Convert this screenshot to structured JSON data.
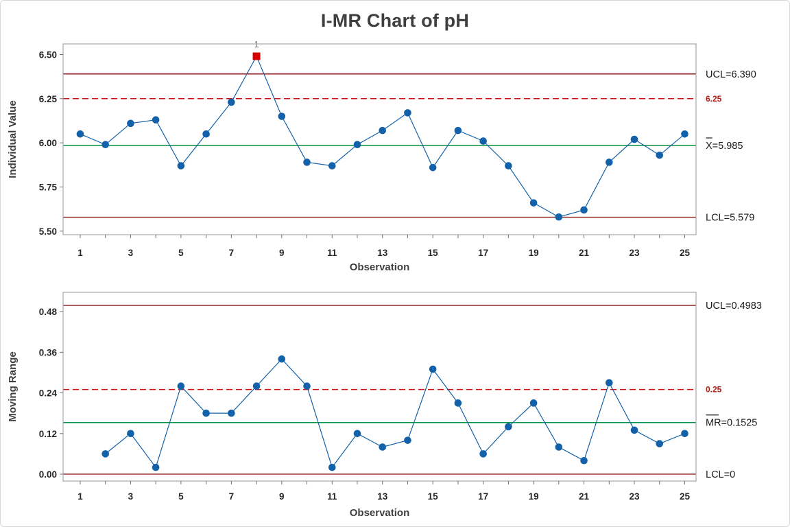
{
  "title": "I-MR Chart of pH",
  "colors": {
    "series_blue": "#1361A9",
    "center_green": "#009041",
    "limit_maroon": "#8E1B1B",
    "spec_red": "#C81414",
    "spec_text_red": "#B02018",
    "ooc_red": "#D60000",
    "flag_gray": "#737373",
    "border_gray": "#A6A6A6",
    "tick_gray": "#737373"
  },
  "chart_data": [
    {
      "type": "line",
      "name": "individuals",
      "ylabel": "Individual Value",
      "xlabel": "Observation",
      "x": [
        1,
        2,
        3,
        4,
        5,
        6,
        7,
        8,
        9,
        10,
        11,
        12,
        13,
        14,
        15,
        16,
        17,
        18,
        19,
        20,
        21,
        22,
        23,
        24,
        25
      ],
      "values": [
        6.05,
        5.99,
        6.11,
        6.13,
        5.87,
        6.05,
        6.23,
        6.49,
        6.15,
        5.89,
        5.87,
        5.99,
        6.07,
        6.17,
        5.86,
        6.07,
        6.01,
        5.87,
        5.66,
        5.58,
        5.62,
        5.89,
        6.02,
        5.93,
        6.05
      ],
      "ylim": [
        5.48,
        6.56
      ],
      "xlim": [
        0.32,
        25.45
      ],
      "yticks": [
        5.5,
        5.75,
        6.0,
        6.25,
        6.5
      ],
      "ytick_labels": [
        "5.50",
        "5.75",
        "6.00",
        "6.25",
        "6.50"
      ],
      "xlabel_ticks": [
        1,
        3,
        5,
        7,
        9,
        11,
        13,
        15,
        17,
        19,
        21,
        23,
        25
      ],
      "center_line": {
        "value": 5.985,
        "label": "X=5.985",
        "overbar": "X"
      },
      "ucl": {
        "value": 6.39,
        "label": "UCL=6.390"
      },
      "lcl": {
        "value": 5.579,
        "label": "LCL=5.579"
      },
      "spec_line": {
        "value": 6.25,
        "label": "6.25"
      },
      "out_of_control": [
        {
          "index": 8,
          "label": "1"
        }
      ],
      "legend": "none",
      "grid": "off"
    },
    {
      "type": "line",
      "name": "moving-range",
      "ylabel": "Moving Range",
      "xlabel": "Observation",
      "x": [
        1,
        2,
        3,
        4,
        5,
        6,
        7,
        8,
        9,
        10,
        11,
        12,
        13,
        14,
        15,
        16,
        17,
        18,
        19,
        20,
        21,
        22,
        23,
        24,
        25
      ],
      "values": [
        null,
        0.06,
        0.12,
        0.02,
        0.26,
        0.18,
        0.18,
        0.26,
        0.34,
        0.26,
        0.02,
        0.12,
        0.08,
        0.1,
        0.31,
        0.21,
        0.06,
        0.14,
        0.21,
        0.08,
        0.04,
        0.27,
        0.13,
        0.09,
        0.12
      ],
      "ylim": [
        -0.0203,
        0.537
      ],
      "xlim": [
        0.32,
        25.45
      ],
      "yticks": [
        0.0,
        0.12,
        0.24,
        0.36,
        0.48
      ],
      "ytick_labels": [
        "0.00",
        "0.12",
        "0.24",
        "0.36",
        "0.48"
      ],
      "xlabel_ticks": [
        1,
        3,
        5,
        7,
        9,
        11,
        13,
        15,
        17,
        19,
        21,
        23,
        25
      ],
      "center_line": {
        "value": 0.1525,
        "label": "MR=0.1525",
        "overbar": "MR"
      },
      "ucl": {
        "value": 0.4983,
        "label": "UCL=0.4983"
      },
      "lcl": {
        "value": 0,
        "label": "LCL=0"
      },
      "spec_line": {
        "value": 0.25,
        "label": "0.25"
      },
      "out_of_control": [],
      "legend": "none",
      "grid": "off"
    }
  ]
}
